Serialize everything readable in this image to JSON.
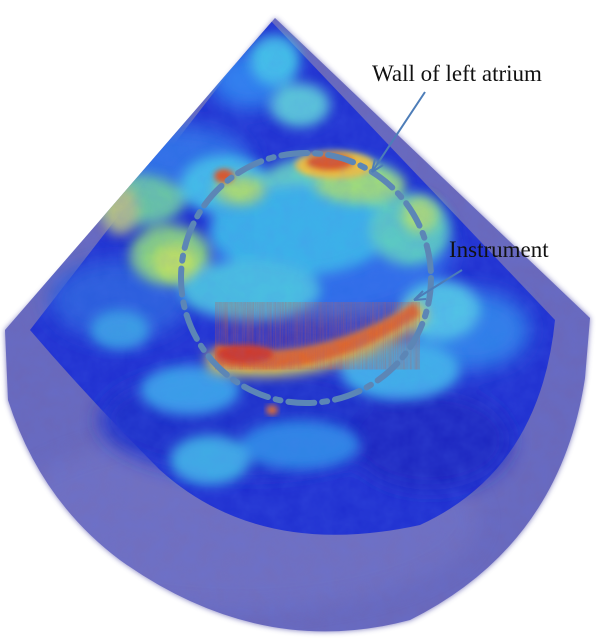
{
  "annotations": {
    "wall": "Wall of left atrium",
    "instrument": "Instrument"
  },
  "colors": {
    "background": "#ffffff",
    "outer_shadow": "#6f6cba",
    "deep_blue": "#1a24c8",
    "mid_blue": "#2f63e8",
    "cyan": "#3cc6e6",
    "green": "#8fdc7a",
    "yellow": "#e9e84a",
    "orange": "#f08a2a",
    "red": "#d8261a",
    "dash_circle": "#5c86b6",
    "arrow": "#4d7db8"
  }
}
